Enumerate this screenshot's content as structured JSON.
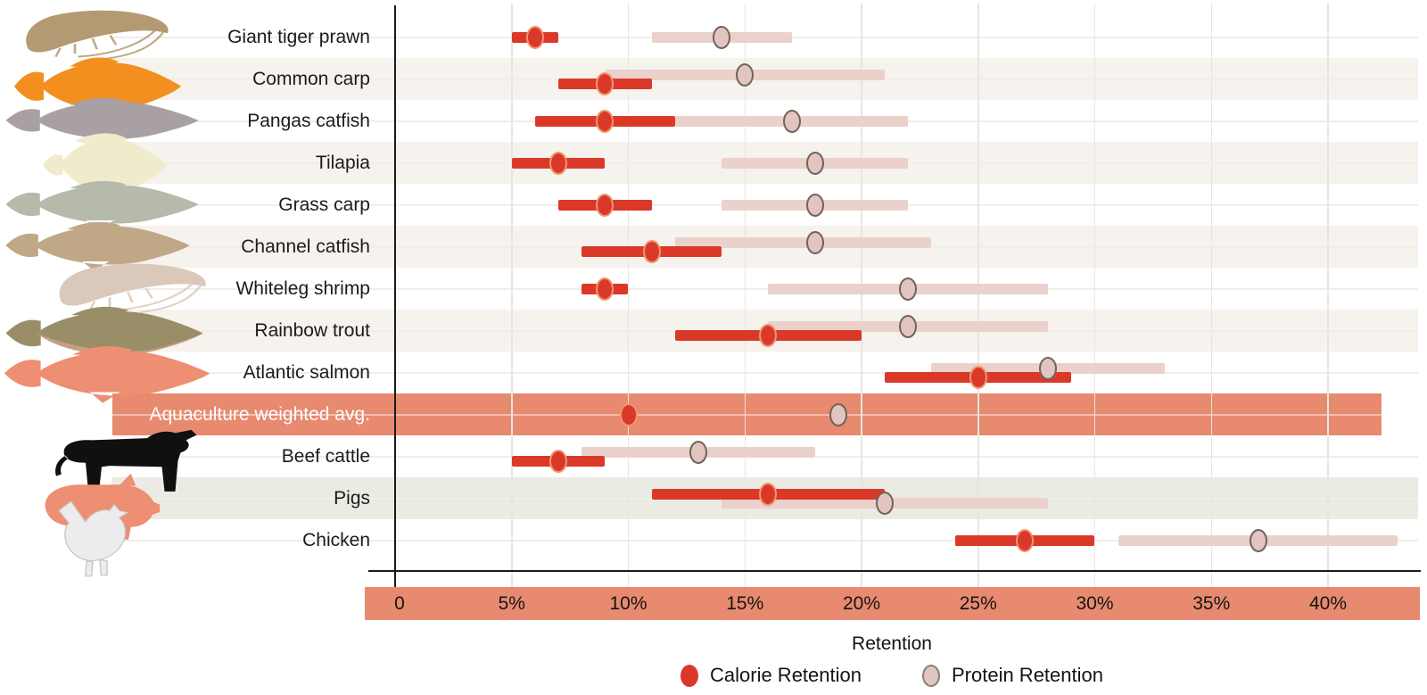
{
  "figure": {
    "x_axis_title": "Retention"
  },
  "colors": {
    "calorie": "#da392a",
    "calorie_dot_ring": "#f0956e",
    "protein_bar": "#ebd1cb",
    "protein_dot": "#e2c4c0",
    "protein_dot_ring": "#70635b",
    "highlight_band": "#e78a70",
    "stripe_beige": "#f6f2ed",
    "stripe_gray": "#ebebe4"
  },
  "chart_data": {
    "type": "dot-range",
    "title": "",
    "xlabel": "Retention",
    "unit": "%",
    "x_axis": {
      "label": "Retention",
      "ticks": [
        "0",
        "5%",
        "10%",
        "15%",
        "20%",
        "25%",
        "30%",
        "35%",
        "40%"
      ],
      "tick_values": [
        0,
        5,
        10,
        15,
        20,
        25,
        30,
        35,
        40
      ],
      "range_shown": [
        0,
        43
      ],
      "grid": "vertical-light"
    },
    "legend": [
      {
        "label": "Calorie Retention",
        "series": "calorie"
      },
      {
        "label": "Protein Retention",
        "series": "protein"
      }
    ],
    "legend_position": "bottom-center",
    "rows": [
      {
        "label": "Giant tiger prawn",
        "animal": "giant-tiger-prawn",
        "animal_color": "#b49a72",
        "stripe": "none",
        "pink_lane": "center",
        "calorie": {
          "low": 5,
          "mid": 6,
          "high": 7
        },
        "protein": {
          "low": 11,
          "mid": 14,
          "high": 17
        }
      },
      {
        "label": "Common carp",
        "animal": "common-carp",
        "animal_color": "#f28f1f",
        "stripe": "beige",
        "pink_lane": "up",
        "calorie": {
          "low": 7,
          "mid": 9,
          "high": 11
        },
        "protein": {
          "low": 9,
          "mid": 15,
          "high": 21
        }
      },
      {
        "label": "Pangas catfish",
        "animal": "pangas-catfish",
        "animal_color": "#a9a0a4",
        "stripe": "none",
        "pink_lane": "center",
        "calorie": {
          "low": 6,
          "mid": 9,
          "high": 12
        },
        "protein": {
          "low": 12,
          "mid": 17,
          "high": 22
        }
      },
      {
        "label": "Tilapia",
        "animal": "tilapia",
        "animal_color": "#f1ebcd",
        "stripe": "beige",
        "pink_lane": "center",
        "calorie": {
          "low": 5,
          "mid": 7,
          "high": 9
        },
        "protein": {
          "low": 14,
          "mid": 18,
          "high": 22
        }
      },
      {
        "label": "Grass carp",
        "animal": "grass-carp",
        "animal_color": "#b6baab",
        "stripe": "none",
        "pink_lane": "center",
        "calorie": {
          "low": 7,
          "mid": 9,
          "high": 11
        },
        "protein": {
          "low": 14,
          "mid": 18,
          "high": 22
        }
      },
      {
        "label": "Channel catfish",
        "animal": "channel-catfish",
        "animal_color": "#c0a886",
        "stripe": "beige",
        "pink_lane": "up",
        "calorie": {
          "low": 8,
          "mid": 11,
          "high": 14
        },
        "protein": {
          "low": 12,
          "mid": 18,
          "high": 23
        }
      },
      {
        "label": "Whiteleg shrimp",
        "animal": "whiteleg-shrimp",
        "animal_color": "#dac8bb",
        "stripe": "none",
        "pink_lane": "center",
        "calorie": {
          "low": 8,
          "mid": 9,
          "high": 10
        },
        "protein": {
          "low": 16,
          "mid": 22,
          "high": 28
        }
      },
      {
        "label": "Rainbow trout",
        "animal": "rainbow-trout",
        "animal_color": "#9a8e68",
        "stripe": "beige",
        "pink_lane": "up",
        "calorie": {
          "low": 12,
          "mid": 16,
          "high": 20
        },
        "protein": {
          "low": 16,
          "mid": 22,
          "high": 28
        }
      },
      {
        "label": "Atlantic salmon",
        "animal": "atlantic-salmon",
        "animal_color": "#ee8e72",
        "stripe": "none",
        "pink_lane": "up",
        "calorie": {
          "low": 21,
          "mid": 25,
          "high": 29
        },
        "protein": {
          "low": 23,
          "mid": 28,
          "high": 33
        }
      },
      {
        "label": "Aquaculture weighted avg.",
        "animal": null,
        "animal_color": null,
        "stripe": "band",
        "pink_lane": "center",
        "calorie": {
          "low": null,
          "mid": 10,
          "high": null
        },
        "protein": {
          "low": null,
          "mid": 19,
          "high": null
        }
      },
      {
        "label": "Beef cattle",
        "animal": "beef-cattle",
        "animal_color": "#101010",
        "stripe": "none",
        "pink_lane": "up",
        "calorie": {
          "low": 5,
          "mid": 7,
          "high": 9
        },
        "protein": {
          "low": 8,
          "mid": 13,
          "high": 18
        }
      },
      {
        "label": "Pigs",
        "animal": "pigs",
        "animal_color": "#ee8e72",
        "stripe": "gray",
        "pink_lane": "down",
        "calorie": {
          "low": 11,
          "mid": 16,
          "high": 21
        },
        "protein": {
          "low": 14,
          "mid": 21,
          "high": 28
        }
      },
      {
        "label": "Chicken",
        "animal": "chicken",
        "animal_color": "#ececec",
        "stripe": "none",
        "pink_lane": "center",
        "calorie": {
          "low": 24,
          "mid": 27,
          "high": 30
        },
        "protein": {
          "low": 31,
          "mid": 37,
          "high": 43
        }
      }
    ]
  }
}
